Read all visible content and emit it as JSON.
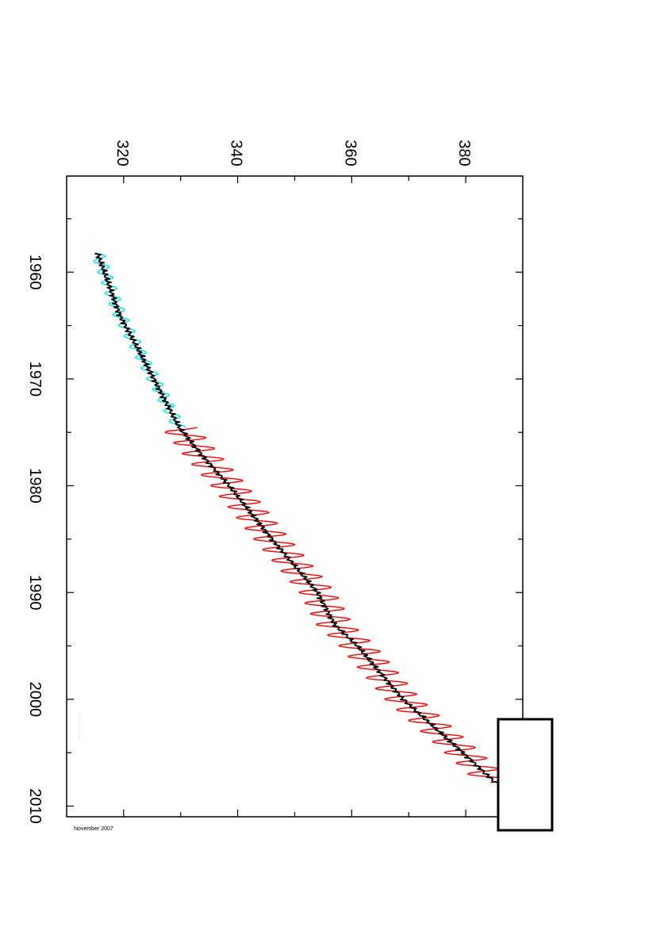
{
  "chart_data": {
    "type": "line",
    "orientation": "rotated-90-clockwise",
    "title": "",
    "xlabel": "",
    "ylabel": "",
    "x_axis": {
      "range": [
        1951,
        2011
      ],
      "major_ticks": [
        1960,
        1970,
        1980,
        1990,
        2000,
        2010
      ],
      "minor_step": 5
    },
    "y_axis": {
      "range": [
        310,
        390
      ],
      "major_ticks": [
        320,
        340,
        360,
        380
      ],
      "minor_step": 10
    },
    "grid": false,
    "legend": "none",
    "note_text": "November 2007",
    "colors": {
      "seasonal_early": "#00e5ee",
      "seasonal_late": "#ff0000",
      "trend": "#000000"
    },
    "series": [
      {
        "role": "seasonal-cycle-early",
        "color": "#00e5ee",
        "x_start": 1958.2,
        "x_end": 1974.5,
        "trend_anchors": [
          [
            1958.2,
            315.4
          ],
          [
            1964,
            319.3
          ],
          [
            1974.5,
            329.7
          ]
        ],
        "seasonal_amplitude": 1.2
      },
      {
        "role": "seasonal-cycle-late",
        "color": "#ff0000",
        "x_start": 1974.5,
        "x_end": 2007.8,
        "trend_anchors": [
          [
            1974.5,
            329.7
          ],
          [
            1977,
            333.5
          ],
          [
            1980,
            338.5
          ],
          [
            1985,
            346.0
          ],
          [
            1990,
            354.0
          ],
          [
            1993,
            357.0
          ],
          [
            1995,
            361.0
          ],
          [
            2000,
            369.0
          ],
          [
            2005,
            379.5
          ],
          [
            2007.8,
            385.2
          ]
        ],
        "seasonal_amplitude": 3.2
      },
      {
        "role": "trend-line",
        "color": "#000000",
        "anchors": [
          [
            1958.2,
            315.4
          ],
          [
            1964,
            319.3
          ],
          [
            1970,
            325.3
          ],
          [
            1974.5,
            329.7
          ],
          [
            1977,
            333.5
          ],
          [
            1980,
            338.5
          ],
          [
            1985,
            346.0
          ],
          [
            1990,
            354.0
          ],
          [
            1993,
            357.0
          ],
          [
            1995,
            361.0
          ],
          [
            2000,
            369.0
          ],
          [
            2005,
            379.5
          ],
          [
            2007.8,
            385.2
          ]
        ]
      }
    ]
  }
}
